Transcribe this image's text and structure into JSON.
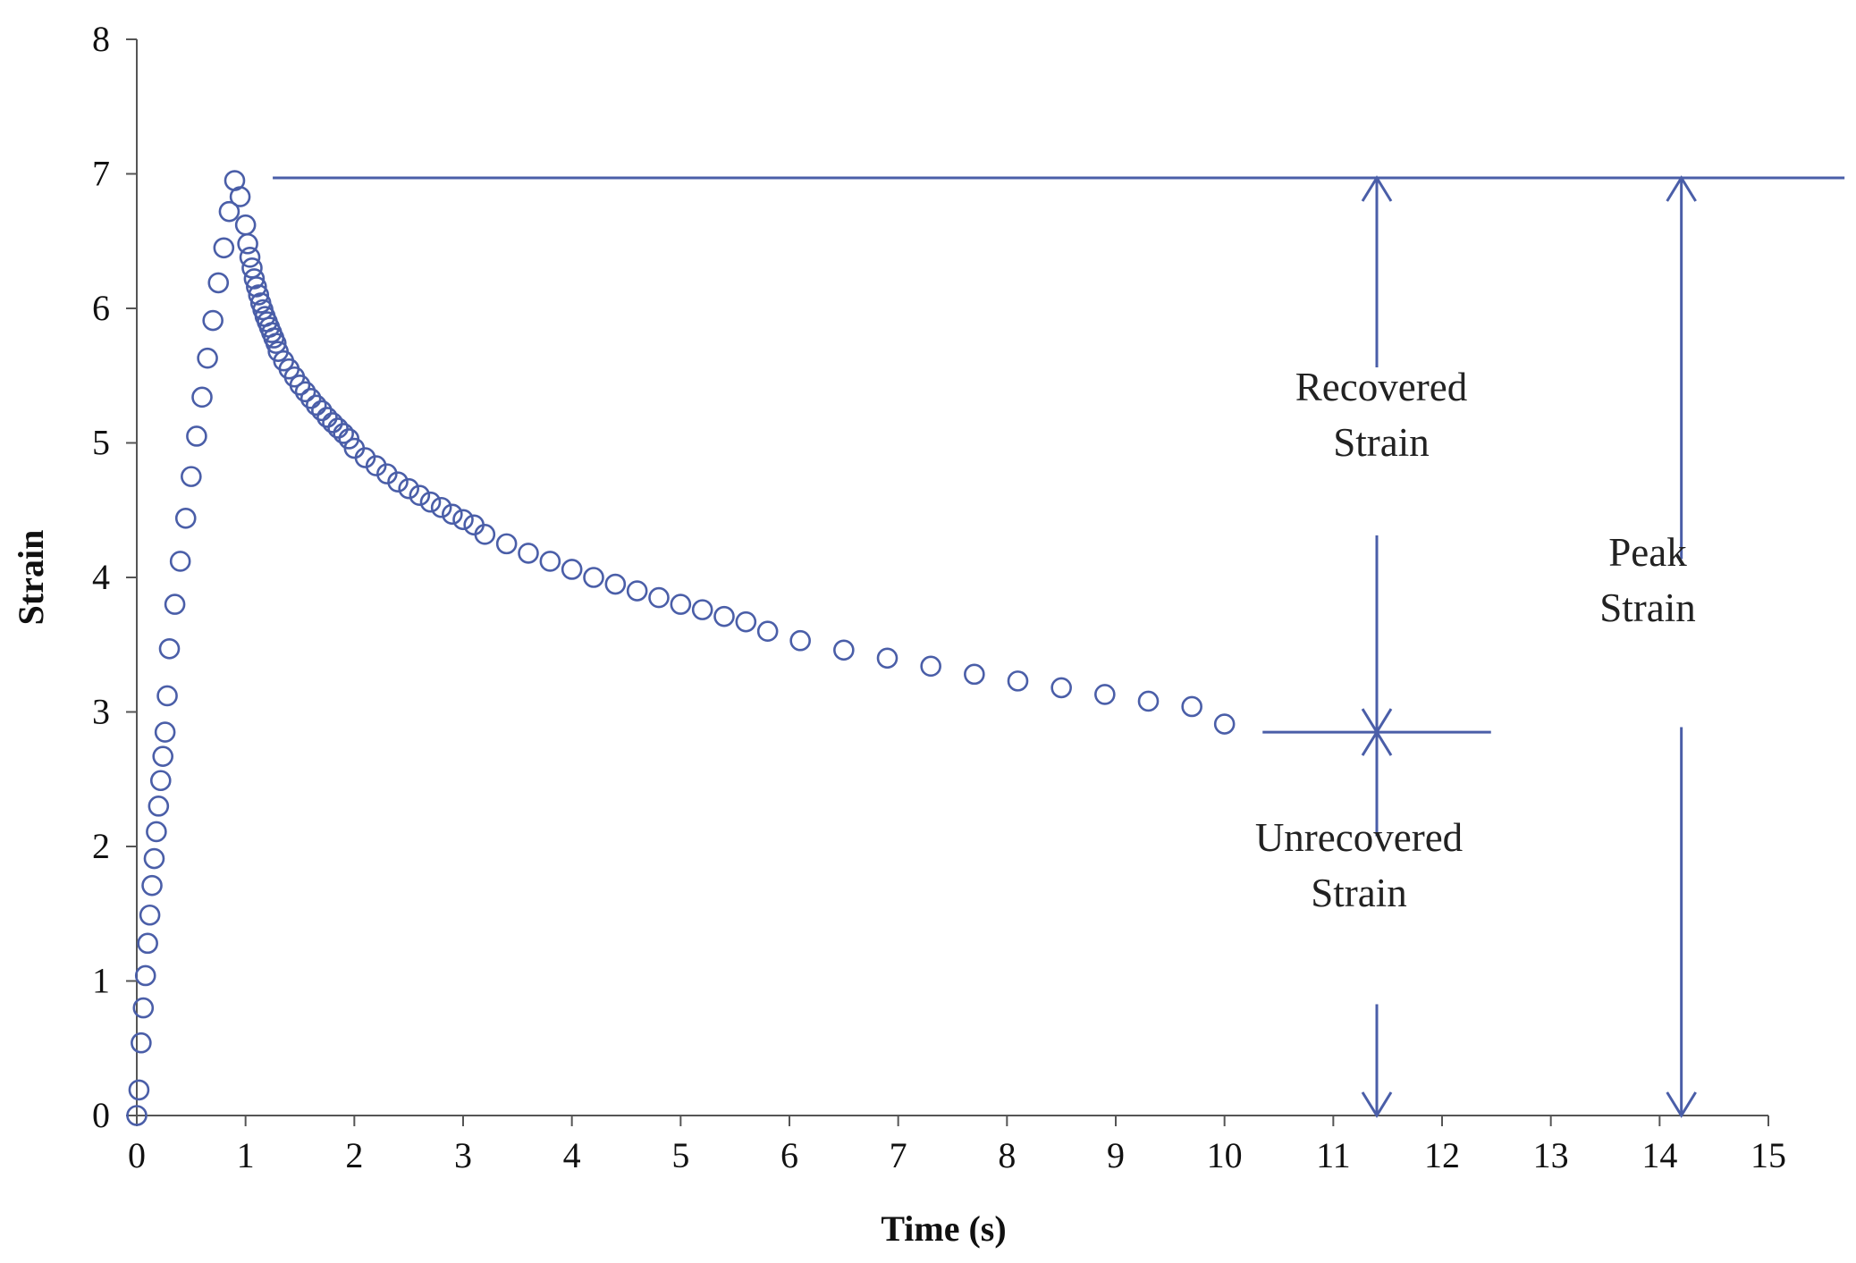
{
  "chart_data": {
    "type": "scatter",
    "title": "",
    "xlabel": "Time (s)",
    "ylabel": "Strain",
    "xlim": [
      0,
      15
    ],
    "ylim": [
      0,
      8
    ],
    "xticks": [
      "0",
      "1",
      "2",
      "3",
      "4",
      "5",
      "6",
      "7",
      "8",
      "9",
      "10",
      "11",
      "12",
      "13",
      "14",
      "15"
    ],
    "yticks": [
      "0",
      "1",
      "2",
      "3",
      "4",
      "5",
      "6",
      "7",
      "8"
    ],
    "grid": false,
    "marker": "open-circle",
    "color": "#4a5ea8",
    "series": [
      {
        "name": "Strain",
        "x": [
          0,
          0.02,
          0.04,
          0.06,
          0.08,
          0.1,
          0.12,
          0.14,
          0.16,
          0.18,
          0.2,
          0.22,
          0.24,
          0.26,
          0.28,
          0.3,
          0.35,
          0.4,
          0.45,
          0.5,
          0.55,
          0.6,
          0.65,
          0.7,
          0.75,
          0.8,
          0.85,
          0.9,
          0.95,
          1.0,
          1.02,
          1.04,
          1.06,
          1.08,
          1.1,
          1.12,
          1.14,
          1.16,
          1.18,
          1.2,
          1.22,
          1.24,
          1.26,
          1.28,
          1.3,
          1.35,
          1.4,
          1.45,
          1.5,
          1.55,
          1.6,
          1.65,
          1.7,
          1.75,
          1.8,
          1.85,
          1.9,
          1.95,
          2.0,
          2.1,
          2.2,
          2.3,
          2.4,
          2.5,
          2.6,
          2.7,
          2.8,
          2.9,
          3.0,
          3.1,
          3.2,
          3.4,
          3.6,
          3.8,
          4.0,
          4.2,
          4.4,
          4.6,
          4.8,
          5.0,
          5.2,
          5.4,
          5.6,
          5.8,
          6.1,
          6.5,
          6.9,
          7.3,
          7.7,
          8.1,
          8.5,
          8.9,
          9.3,
          9.7,
          10.0
        ],
        "y": [
          0,
          0.19,
          0.54,
          0.8,
          1.04,
          1.28,
          1.49,
          1.71,
          1.91,
          2.11,
          2.3,
          2.49,
          2.67,
          2.85,
          3.12,
          3.47,
          3.8,
          4.12,
          4.44,
          4.75,
          5.05,
          5.34,
          5.63,
          5.91,
          6.19,
          6.45,
          6.72,
          6.95,
          6.83,
          6.62,
          6.48,
          6.38,
          6.3,
          6.22,
          6.16,
          6.1,
          6.04,
          5.99,
          5.94,
          5.9,
          5.86,
          5.82,
          5.78,
          5.74,
          5.68,
          5.61,
          5.55,
          5.49,
          5.43,
          5.38,
          5.33,
          5.28,
          5.24,
          5.19,
          5.15,
          5.11,
          5.07,
          5.03,
          4.96,
          4.89,
          4.83,
          4.77,
          4.71,
          4.66,
          4.61,
          4.56,
          4.52,
          4.47,
          4.43,
          4.39,
          4.32,
          4.25,
          4.18,
          4.12,
          4.06,
          4.0,
          3.95,
          3.9,
          3.85,
          3.8,
          3.76,
          3.71,
          3.67,
          3.6,
          3.53,
          3.46,
          3.4,
          3.34,
          3.28,
          3.23,
          3.18,
          3.13,
          3.08,
          3.04,
          2.91
        ]
      }
    ],
    "annotations": [
      {
        "label_lines": [
          "Recovered",
          "Strain"
        ],
        "x": 11.4,
        "y_from": 2.85,
        "y_to": 6.97
      },
      {
        "label_lines": [
          "Unrecovered",
          "Strain"
        ],
        "x": 11.4,
        "y_from": 0,
        "y_to": 2.85
      },
      {
        "label_lines": [
          "Peak",
          "Strain"
        ],
        "x": 14.2,
        "y_from": 0,
        "y_to": 6.97
      }
    ],
    "reference_lines": [
      {
        "name": "peak-strain-level",
        "y": 6.97,
        "x_from": 1.25,
        "x_to": 15.7
      },
      {
        "name": "unrecovered-strain-level",
        "y": 2.85,
        "x_from": 10.35,
        "x_to": 12.45
      }
    ]
  }
}
